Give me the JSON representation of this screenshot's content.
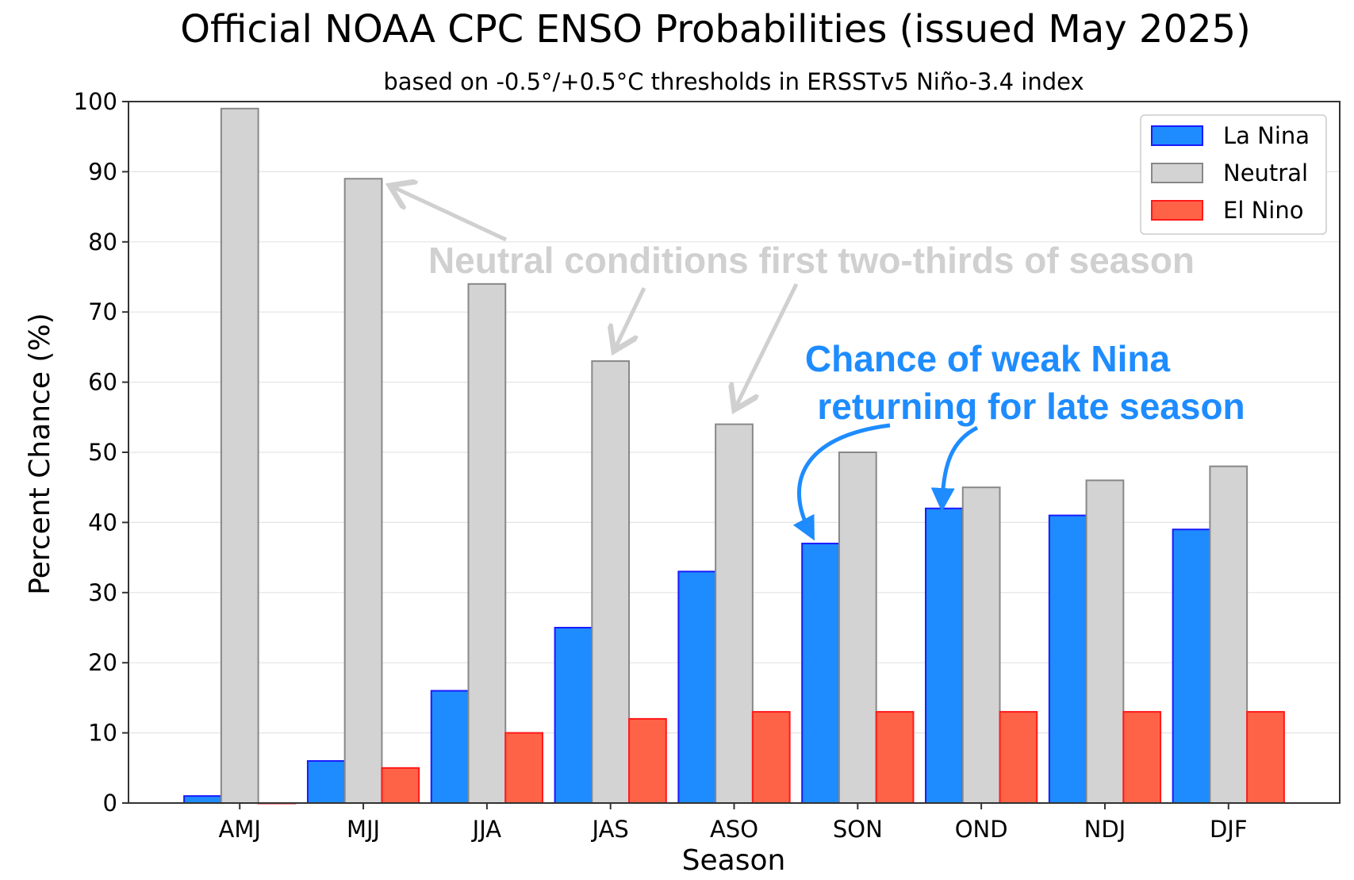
{
  "chart_data": {
    "type": "bar",
    "title": "Official NOAA CPC ENSO Probabilities (issued May 2025)",
    "subtitle": "based on -0.5°/+0.5°C thresholds in ERSSTv5 Niño-3.4 index",
    "xlabel": "Season",
    "ylabel": "Percent Chance (%)",
    "ylim": [
      0,
      100
    ],
    "yticks": [
      0,
      10,
      20,
      30,
      40,
      50,
      60,
      70,
      80,
      90,
      100
    ],
    "grid": true,
    "legend_position": "top-right",
    "categories": [
      "AMJ",
      "MJJ",
      "JJA",
      "JAS",
      "ASO",
      "SON",
      "OND",
      "NDJ",
      "DJF"
    ],
    "series": [
      {
        "name": "La Nina",
        "color": "#1e8cff",
        "edge": "#1a1aff",
        "values": [
          1,
          6,
          16,
          25,
          33,
          37,
          42,
          41,
          39
        ]
      },
      {
        "name": "Neutral",
        "color": "#d3d3d3",
        "edge": "#888888",
        "values": [
          99,
          89,
          74,
          63,
          54,
          50,
          45,
          46,
          48
        ]
      },
      {
        "name": "El Nino",
        "color": "#ff6347",
        "edge": "#ff1a1a",
        "values": [
          0,
          5,
          10,
          12,
          13,
          13,
          13,
          13,
          13
        ]
      }
    ],
    "annotations": {
      "neutral_note": "Neutral conditions first two-thirds of season",
      "nina_note_line1": "Chance of weak Nina",
      "nina_note_line2": "returning for late season",
      "neutral_color": "#d0d0d0",
      "nina_color": "#1e8cff"
    }
  }
}
